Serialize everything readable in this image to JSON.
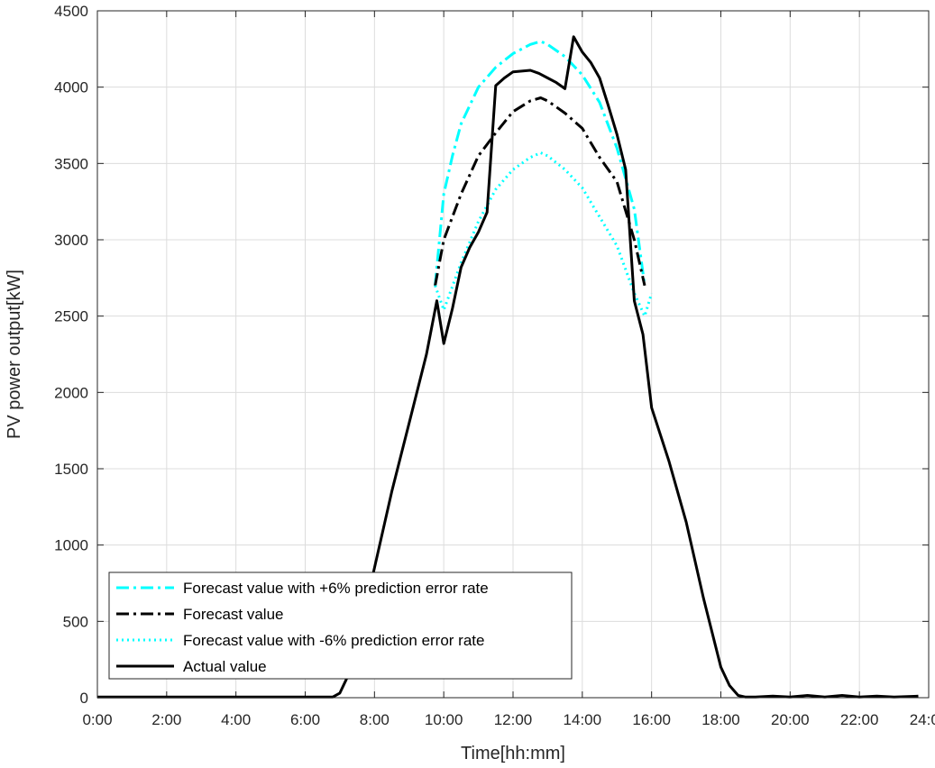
{
  "chart_data": {
    "type": "line",
    "title": "",
    "xlabel": "Time[hh:mm]",
    "ylabel": "PV power output[kW]",
    "xlim": [
      0,
      24
    ],
    "ylim": [
      0,
      4500
    ],
    "grid": true,
    "legend_position": "bottom-left",
    "x_ticks": [
      {
        "value": 0,
        "label": "0:00"
      },
      {
        "value": 2,
        "label": "2:00"
      },
      {
        "value": 4,
        "label": "4:00"
      },
      {
        "value": 6,
        "label": "6:00"
      },
      {
        "value": 8,
        "label": "8:00"
      },
      {
        "value": 10,
        "label": "10:00"
      },
      {
        "value": 12,
        "label": "12:00"
      },
      {
        "value": 14,
        "label": "14:00"
      },
      {
        "value": 16,
        "label": "16:00"
      },
      {
        "value": 18,
        "label": "18:00"
      },
      {
        "value": 20,
        "label": "20:00"
      },
      {
        "value": 22,
        "label": "22:00"
      },
      {
        "value": 24,
        "label": "24:00"
      }
    ],
    "y_ticks": [
      {
        "value": 0,
        "label": "0"
      },
      {
        "value": 500,
        "label": "500"
      },
      {
        "value": 1000,
        "label": "1000"
      },
      {
        "value": 1500,
        "label": "1500"
      },
      {
        "value": 2000,
        "label": "2000"
      },
      {
        "value": 2500,
        "label": "2500"
      },
      {
        "value": 3000,
        "label": "3000"
      },
      {
        "value": 3500,
        "label": "3500"
      },
      {
        "value": 4000,
        "label": "4000"
      },
      {
        "value": 4500,
        "label": "4500"
      }
    ],
    "series": [
      {
        "name": "Forecast value with +6% prediction error rate",
        "color": "#00ffff",
        "style": "dashdot",
        "x": [
          9.75,
          10,
          10.25,
          10.5,
          11,
          11.5,
          12,
          12.5,
          12.8,
          13,
          13.5,
          14,
          14.5,
          15,
          15.5,
          15.8
        ],
        "y": [
          2700,
          3300,
          3550,
          3760,
          4000,
          4130,
          4220,
          4280,
          4300,
          4280,
          4200,
          4080,
          3900,
          3600,
          3200,
          2700
        ]
      },
      {
        "name": "Forecast value",
        "color": "#000000",
        "style": "dashdot",
        "x": [
          9.75,
          10,
          10.5,
          11,
          11.5,
          12,
          12.5,
          12.8,
          13,
          13.5,
          14,
          14.5,
          15,
          15.5,
          15.8
        ],
        "y": [
          2700,
          3000,
          3300,
          3550,
          3700,
          3840,
          3910,
          3930,
          3910,
          3830,
          3730,
          3540,
          3380,
          3000,
          2700
        ]
      },
      {
        "name": "Forecast value with -6% prediction error rate",
        "color": "#00ffff",
        "style": "dotted",
        "x": [
          9.75,
          10,
          10.5,
          11,
          11.5,
          12,
          12.5,
          12.8,
          13,
          13.5,
          14,
          14.5,
          15,
          15.5,
          15.8,
          16
        ],
        "y": [
          2700,
          2540,
          2850,
          3120,
          3330,
          3460,
          3540,
          3570,
          3550,
          3460,
          3340,
          3150,
          2960,
          2650,
          2500,
          2650
        ]
      },
      {
        "name": "Actual value",
        "color": "#000000",
        "style": "solid",
        "x": [
          0,
          6.8,
          7,
          7.25,
          7.5,
          8,
          8.5,
          9,
          9.5,
          9.8,
          10,
          10.25,
          10.5,
          10.75,
          11,
          11.25,
          11.5,
          11.75,
          12,
          12.5,
          12.75,
          13,
          13.25,
          13.5,
          13.75,
          14,
          14.25,
          14.5,
          14.75,
          15,
          15.25,
          15.5,
          15.75,
          16,
          16.5,
          17,
          17.5,
          18,
          18.25,
          18.5,
          18.7,
          19,
          19.5,
          20,
          20.5,
          21,
          21.5,
          22,
          22.5,
          23,
          23.7
        ],
        "y": [
          5,
          5,
          30,
          150,
          350,
          850,
          1350,
          1800,
          2250,
          2600,
          2320,
          2550,
          2820,
          2950,
          3050,
          3180,
          4010,
          4060,
          4100,
          4110,
          4090,
          4060,
          4030,
          3990,
          4330,
          4230,
          4160,
          4060,
          3880,
          3690,
          3460,
          2600,
          2380,
          1900,
          1550,
          1150,
          650,
          200,
          80,
          15,
          5,
          5,
          10,
          5,
          15,
          5,
          15,
          5,
          10,
          5,
          10
        ]
      }
    ]
  }
}
